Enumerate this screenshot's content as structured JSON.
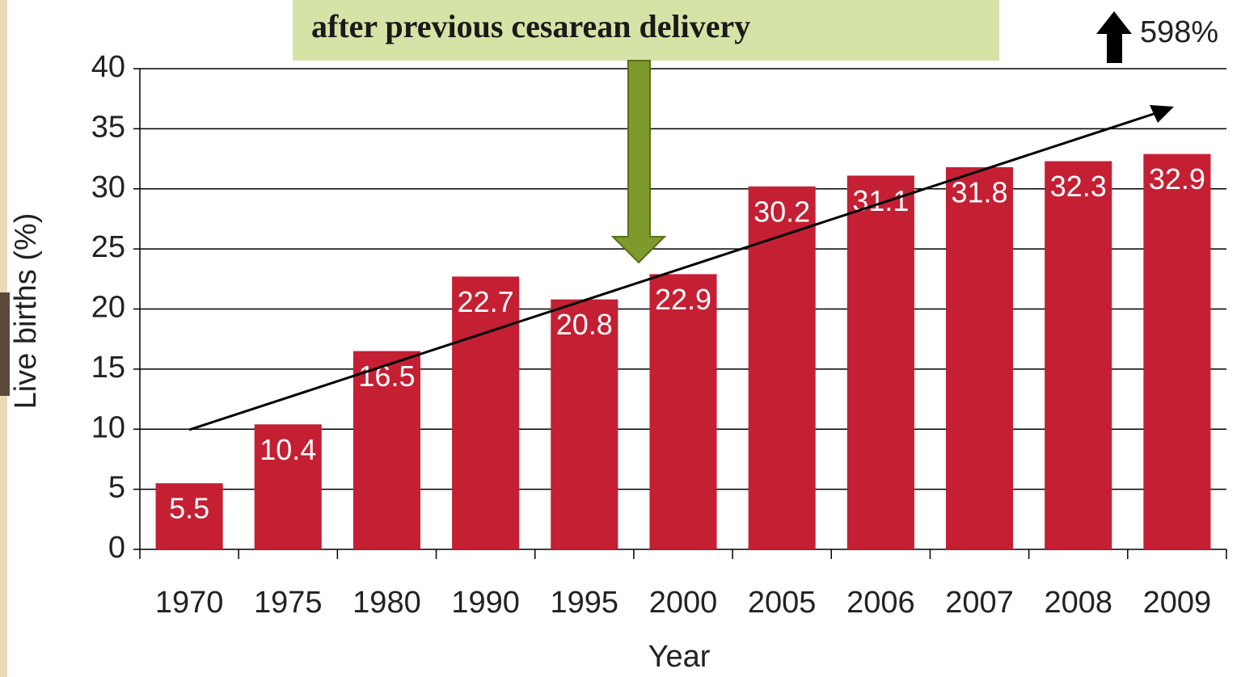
{
  "chart_data": {
    "type": "bar",
    "annotations": [
      "after previous cesarean delivery",
      "598%"
    ],
    "x_label": "Year",
    "y_label": "Live births (%)",
    "categories": [
      "1970",
      "1975",
      "1980",
      "1990",
      "1995",
      "2000",
      "2005",
      "2006",
      "2007",
      "2008",
      "2009"
    ],
    "values": [
      5.5,
      10.4,
      16.5,
      22.7,
      20.8,
      22.9,
      30.2,
      31.1,
      31.8,
      32.3,
      32.9
    ],
    "color": "#c41f33",
    "ylim": [
      0,
      40
    ],
    "yticks": [
      0,
      5,
      10,
      15,
      20,
      25,
      30,
      35,
      40
    ],
    "grid": true
  }
}
